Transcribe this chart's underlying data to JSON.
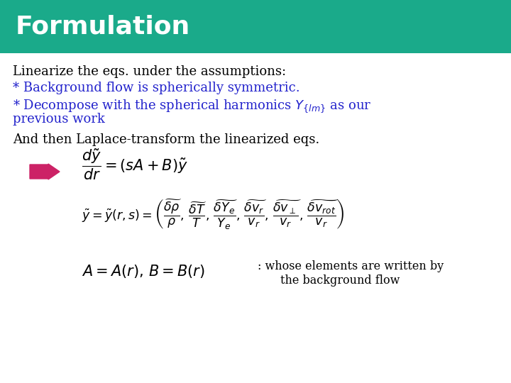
{
  "title": "Formulation",
  "title_bg_color": "#1aaa8a",
  "title_text_color": "#ffffff",
  "body_bg_color": "#ffffff",
  "text_color_black": "#000000",
  "text_color_blue": "#2222cc",
  "arrow_color": "#cc2266",
  "line1": "Linearize the eqs. under the assumptions:",
  "line2": "* Background flow is spherically symmetric.",
  "line3_part1": "* Decompose with the spherical harmonics Y_{lm} as our",
  "line3_part2": "previous work",
  "line5": "And then Laplace-transform the linearized eqs.",
  "caption1": ": whose elements are written by",
  "caption2": "the background flow"
}
